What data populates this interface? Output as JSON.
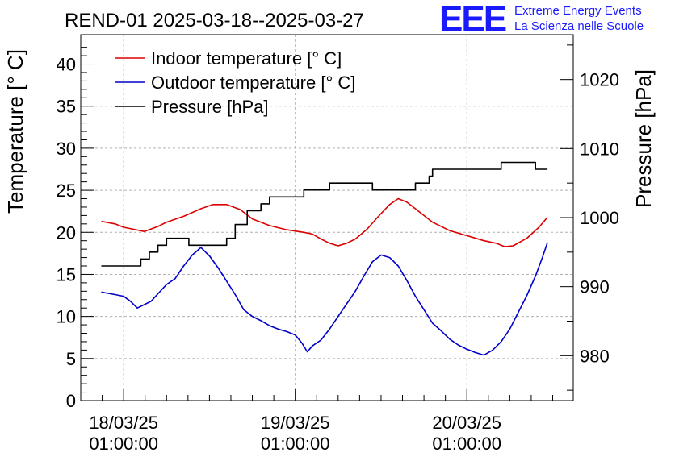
{
  "header": {
    "title": "REND-01 2025-03-18--2025-03-27",
    "logo_text": "EEE",
    "org_line1": "Extreme Energy Events",
    "org_line2": "La Scienza nelle Scuole"
  },
  "colors": {
    "indoor": "#dd0000",
    "outdoor": "#0000cc",
    "pressure": "#000000",
    "logo": "#1a1aff",
    "grid": "#b0b0b0"
  },
  "chart_data": {
    "type": "line",
    "title": "REND-01 2025-03-18--2025-03-27",
    "ylabel": "Temperature [° C]",
    "y2label": "Pressure [hPa]",
    "ylim": [
      0,
      43.5
    ],
    "y2lim": [
      973.5,
      1026.5
    ],
    "x_range_days": [
      17.75,
      20.62
    ],
    "grid": true,
    "legend_position": "top-left",
    "yticks": [
      "0",
      "5",
      "10",
      "15",
      "20",
      "25",
      "30",
      "35",
      "40"
    ],
    "y2ticks": [
      "980",
      "990",
      "1000",
      "1010",
      "1020"
    ],
    "xticks": [
      {
        "date": "18/03/25",
        "time": "01:00:00",
        "day": 18.0
      },
      {
        "date": "19/03/25",
        "time": "01:00:00",
        "day": 19.0
      },
      {
        "date": "20/03/25",
        "time": "01:00:00",
        "day": 20.0
      }
    ],
    "series": [
      {
        "name": "Indoor temperature [° C]",
        "axis": "left",
        "points": [
          [
            17.87,
            21.3
          ],
          [
            17.95,
            21.0
          ],
          [
            18.0,
            20.6
          ],
          [
            18.05,
            20.4
          ],
          [
            18.12,
            20.1
          ],
          [
            18.2,
            20.7
          ],
          [
            18.25,
            21.2
          ],
          [
            18.35,
            21.9
          ],
          [
            18.45,
            22.8
          ],
          [
            18.52,
            23.3
          ],
          [
            18.6,
            23.3
          ],
          [
            18.68,
            22.7
          ],
          [
            18.75,
            21.6
          ],
          [
            18.85,
            20.8
          ],
          [
            18.95,
            20.3
          ],
          [
            19.05,
            20.0
          ],
          [
            19.1,
            19.8
          ],
          [
            19.15,
            19.2
          ],
          [
            19.2,
            18.7
          ],
          [
            19.25,
            18.4
          ],
          [
            19.3,
            18.7
          ],
          [
            19.35,
            19.2
          ],
          [
            19.42,
            20.4
          ],
          [
            19.48,
            21.8
          ],
          [
            19.55,
            23.3
          ],
          [
            19.6,
            24.0
          ],
          [
            19.65,
            23.6
          ],
          [
            19.7,
            22.8
          ],
          [
            19.8,
            21.2
          ],
          [
            19.9,
            20.2
          ],
          [
            20.0,
            19.6
          ],
          [
            20.1,
            19.0
          ],
          [
            20.17,
            18.7
          ],
          [
            20.22,
            18.3
          ],
          [
            20.27,
            18.4
          ],
          [
            20.35,
            19.3
          ],
          [
            20.42,
            20.6
          ],
          [
            20.47,
            21.8
          ]
        ]
      },
      {
        "name": "Outdoor temperature [° C]",
        "axis": "left",
        "points": [
          [
            17.87,
            12.9
          ],
          [
            17.95,
            12.6
          ],
          [
            18.0,
            12.4
          ],
          [
            18.04,
            11.8
          ],
          [
            18.08,
            11.0
          ],
          [
            18.12,
            11.4
          ],
          [
            18.16,
            11.8
          ],
          [
            18.2,
            12.7
          ],
          [
            18.25,
            13.8
          ],
          [
            18.3,
            14.5
          ],
          [
            18.35,
            16.0
          ],
          [
            18.4,
            17.3
          ],
          [
            18.45,
            18.2
          ],
          [
            18.5,
            17.2
          ],
          [
            18.55,
            15.8
          ],
          [
            18.6,
            14.2
          ],
          [
            18.65,
            12.6
          ],
          [
            18.7,
            10.8
          ],
          [
            18.75,
            10.0
          ],
          [
            18.8,
            9.5
          ],
          [
            18.85,
            8.9
          ],
          [
            18.9,
            8.5
          ],
          [
            18.95,
            8.2
          ],
          [
            19.0,
            7.8
          ],
          [
            19.04,
            6.8
          ],
          [
            19.07,
            5.8
          ],
          [
            19.1,
            6.5
          ],
          [
            19.15,
            7.2
          ],
          [
            19.2,
            8.5
          ],
          [
            19.25,
            10.0
          ],
          [
            19.3,
            11.5
          ],
          [
            19.35,
            13.0
          ],
          [
            19.4,
            14.8
          ],
          [
            19.45,
            16.5
          ],
          [
            19.5,
            17.3
          ],
          [
            19.55,
            17.0
          ],
          [
            19.6,
            16.0
          ],
          [
            19.65,
            14.3
          ],
          [
            19.7,
            12.4
          ],
          [
            19.75,
            10.8
          ],
          [
            19.8,
            9.2
          ],
          [
            19.85,
            8.3
          ],
          [
            19.9,
            7.3
          ],
          [
            19.95,
            6.6
          ],
          [
            20.0,
            6.1
          ],
          [
            20.05,
            5.7
          ],
          [
            20.1,
            5.4
          ],
          [
            20.15,
            6.0
          ],
          [
            20.2,
            7.0
          ],
          [
            20.25,
            8.5
          ],
          [
            20.3,
            10.5
          ],
          [
            20.35,
            12.5
          ],
          [
            20.4,
            14.8
          ],
          [
            20.44,
            17.0
          ],
          [
            20.47,
            18.8
          ]
        ]
      },
      {
        "name": "Pressure [hPa]",
        "axis": "right",
        "points": [
          [
            17.87,
            993.0
          ],
          [
            18.07,
            993.0
          ],
          [
            18.1,
            994.0
          ],
          [
            18.15,
            995.0
          ],
          [
            18.2,
            996.0
          ],
          [
            18.25,
            997.0
          ],
          [
            18.3,
            997.0
          ],
          [
            18.38,
            996.0
          ],
          [
            18.55,
            996.0
          ],
          [
            18.6,
            997.0
          ],
          [
            18.65,
            999.0
          ],
          [
            18.72,
            1001.0
          ],
          [
            18.8,
            1002.0
          ],
          [
            18.85,
            1003.0
          ],
          [
            18.95,
            1003.0
          ],
          [
            19.05,
            1004.0
          ],
          [
            19.15,
            1004.0
          ],
          [
            19.2,
            1005.0
          ],
          [
            19.4,
            1005.0
          ],
          [
            19.45,
            1004.0
          ],
          [
            19.6,
            1004.0
          ],
          [
            19.7,
            1005.0
          ],
          [
            19.78,
            1006.0
          ],
          [
            19.8,
            1007.0
          ],
          [
            19.95,
            1007.0
          ],
          [
            20.15,
            1007.0
          ],
          [
            20.2,
            1008.0
          ],
          [
            20.35,
            1008.0
          ],
          [
            20.4,
            1007.0
          ],
          [
            20.47,
            1007.0
          ]
        ]
      }
    ]
  }
}
